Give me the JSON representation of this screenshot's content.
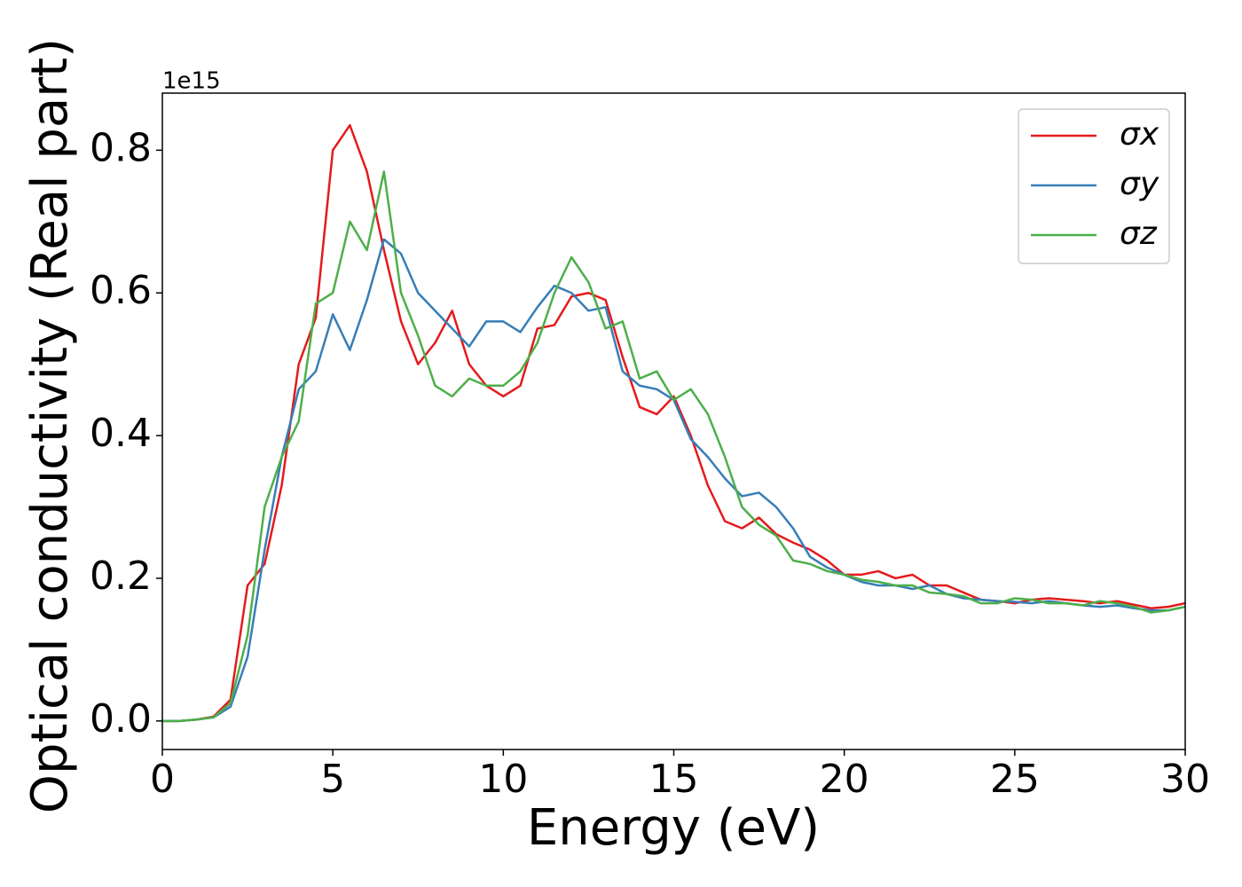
{
  "chart_data": {
    "type": "line",
    "xlabel": "Energy (eV)",
    "ylabel": "Optical conductivity (Real part)",
    "y_offset_label": "1e15",
    "x": [
      0,
      0.5,
      1,
      1.5,
      2,
      2.5,
      3,
      3.5,
      4,
      4.5,
      5,
      5.5,
      6,
      6.5,
      7,
      7.5,
      8,
      8.5,
      9,
      9.5,
      10,
      10.5,
      11,
      11.5,
      12,
      12.5,
      13,
      13.5,
      14,
      14.5,
      15,
      15.5,
      16,
      16.5,
      17,
      17.5,
      18,
      18.5,
      19,
      19.5,
      20,
      20.5,
      21,
      21.5,
      22,
      22.5,
      23,
      23.5,
      24,
      24.5,
      25,
      25.5,
      26,
      26.5,
      27,
      27.5,
      28,
      28.5,
      29,
      29.5,
      30
    ],
    "series": [
      {
        "name": "σx",
        "color": "#e41a1c",
        "values": [
          0,
          0,
          0.002,
          0.006,
          0.03,
          0.19,
          0.22,
          0.33,
          0.5,
          0.565,
          0.8,
          0.835,
          0.77,
          0.66,
          0.56,
          0.5,
          0.53,
          0.575,
          0.5,
          0.47,
          0.455,
          0.47,
          0.55,
          0.555,
          0.595,
          0.6,
          0.59,
          0.51,
          0.44,
          0.43,
          0.455,
          0.4,
          0.33,
          0.28,
          0.27,
          0.285,
          0.262,
          0.25,
          0.24,
          0.225,
          0.205,
          0.205,
          0.21,
          0.2,
          0.205,
          0.19,
          0.19,
          0.18,
          0.17,
          0.168,
          0.165,
          0.17,
          0.172,
          0.17,
          0.168,
          0.165,
          0.168,
          0.163,
          0.158,
          0.16,
          0.165
        ]
      },
      {
        "name": "σy",
        "color": "#377eb8",
        "values": [
          0,
          0,
          0.002,
          0.005,
          0.02,
          0.09,
          0.24,
          0.37,
          0.465,
          0.49,
          0.57,
          0.52,
          0.59,
          0.675,
          0.655,
          0.6,
          0.575,
          0.55,
          0.525,
          0.56,
          0.56,
          0.545,
          0.58,
          0.61,
          0.6,
          0.575,
          0.58,
          0.49,
          0.47,
          0.465,
          0.45,
          0.395,
          0.37,
          0.34,
          0.315,
          0.32,
          0.3,
          0.27,
          0.23,
          0.215,
          0.205,
          0.195,
          0.19,
          0.19,
          0.185,
          0.19,
          0.178,
          0.172,
          0.17,
          0.168,
          0.167,
          0.165,
          0.168,
          0.165,
          0.162,
          0.16,
          0.162,
          0.158,
          0.155,
          0.155,
          0.16
        ]
      },
      {
        "name": "σz",
        "color": "#4daf4a",
        "values": [
          0,
          0,
          0.002,
          0.005,
          0.025,
          0.12,
          0.3,
          0.37,
          0.42,
          0.585,
          0.6,
          0.7,
          0.66,
          0.77,
          0.6,
          0.54,
          0.47,
          0.455,
          0.48,
          0.47,
          0.47,
          0.49,
          0.53,
          0.6,
          0.65,
          0.615,
          0.55,
          0.56,
          0.48,
          0.49,
          0.45,
          0.465,
          0.43,
          0.37,
          0.3,
          0.275,
          0.26,
          0.225,
          0.22,
          0.21,
          0.205,
          0.198,
          0.195,
          0.19,
          0.19,
          0.18,
          0.178,
          0.175,
          0.165,
          0.165,
          0.172,
          0.17,
          0.165,
          0.165,
          0.162,
          0.168,
          0.165,
          0.16,
          0.152,
          0.155,
          0.16
        ]
      }
    ],
    "xlim": [
      0,
      30
    ],
    "xticks": [
      0,
      5,
      10,
      15,
      20,
      25,
      30
    ],
    "ylim": [
      -0.04,
      0.88
    ],
    "yticks": [
      {
        "value": 0,
        "label": "0.0"
      },
      0.2,
      0.4,
      0.6,
      0.8
    ],
    "legend": "upper right",
    "grid": false
  }
}
